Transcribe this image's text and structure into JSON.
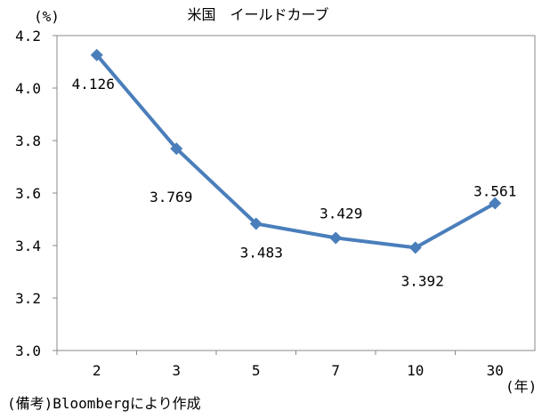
{
  "chart_data": {
    "type": "line",
    "title": "米国　イールドカーブ",
    "ylabel": "(%)",
    "xlabel": "(年)",
    "categories": [
      "2",
      "3",
      "5",
      "7",
      "10",
      "30"
    ],
    "series": [
      {
        "values": [
          4.126,
          3.769,
          3.483,
          3.429,
          3.392,
          3.561
        ]
      }
    ],
    "data_labels": [
      "4.126",
      "3.769",
      "3.483",
      "3.429",
      "3.392",
      "3.561"
    ],
    "ylim": [
      3.0,
      4.2
    ],
    "yticks": [
      "3.0",
      "3.2",
      "3.4",
      "3.6",
      "3.8",
      "4.0",
      "4.2"
    ],
    "grid": false,
    "line_color": "#4a7ebb",
    "marker": "diamond"
  },
  "note": "(備考)Bloombergにより作成"
}
